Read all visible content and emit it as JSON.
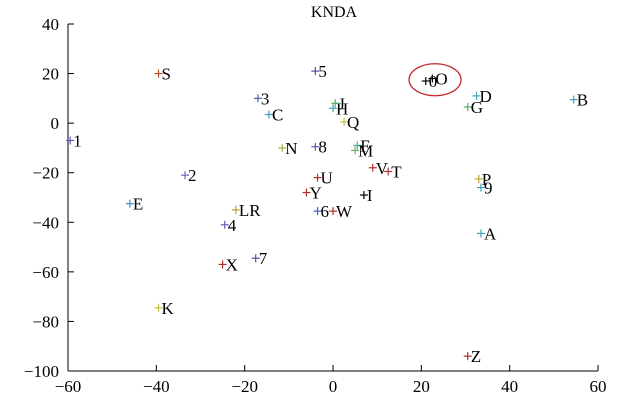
{
  "chart_data": {
    "type": "scatter",
    "title": "KNDA",
    "xlabel": "",
    "ylabel": "",
    "xlim": [
      -60,
      60
    ],
    "ylim": [
      -100,
      40
    ],
    "xticks": [
      -60,
      -40,
      -20,
      0,
      20,
      40,
      60
    ],
    "yticks": [
      -100,
      -80,
      -60,
      -40,
      -20,
      0,
      20,
      40
    ],
    "grid": false,
    "points": [
      {
        "label": "1",
        "x": -59.5,
        "y": -7,
        "color": "#5a5aa8"
      },
      {
        "label": "S",
        "x": -39.5,
        "y": 20,
        "color": "#b0502a"
      },
      {
        "label": "2",
        "x": -33.5,
        "y": -21,
        "color": "#6a6ac0"
      },
      {
        "label": "E",
        "x": -46,
        "y": -32.5,
        "color": "#3a8acb"
      },
      {
        "label": "3",
        "x": -17,
        "y": 10,
        "color": "#5060b0"
      },
      {
        "label": "C",
        "x": -14.5,
        "y": 3.5,
        "color": "#3a9acb"
      },
      {
        "label": "N",
        "x": -11.5,
        "y": -10,
        "color": "#a8b040"
      },
      {
        "label": "8",
        "x": -4,
        "y": -9.5,
        "color": "#5a5ab0"
      },
      {
        "label": "LR",
        "x": -22,
        "y": -35,
        "color": "#b8a030"
      },
      {
        "label": "4",
        "x": -24.5,
        "y": -41,
        "color": "#6060b8"
      },
      {
        "label": "7",
        "x": -17.5,
        "y": -54.5,
        "color": "#5050a8"
      },
      {
        "label": "X",
        "x": -25,
        "y": -57,
        "color": "#b03030"
      },
      {
        "label": "K",
        "x": -39.5,
        "y": -74.5,
        "color": "#c0c040"
      },
      {
        "label": "5",
        "x": -4,
        "y": 21,
        "color": "#5050a8"
      },
      {
        "label": "H",
        "x": 0,
        "y": 6,
        "color": "#40a0c0"
      },
      {
        "label": "J",
        "x": 0.5,
        "y": 8,
        "color": "#50b060"
      },
      {
        "label": "Q",
        "x": 2.5,
        "y": 0.5,
        "color": "#c0c040"
      },
      {
        "label": "F",
        "x": 5.5,
        "y": -9,
        "color": "#40b0a0"
      },
      {
        "label": "M",
        "x": 5,
        "y": -11,
        "color": "#70b060"
      },
      {
        "label": "V",
        "x": 9,
        "y": -18,
        "color": "#b03030"
      },
      {
        "label": "T",
        "x": 12.5,
        "y": -19.5,
        "color": "#b03030"
      },
      {
        "label": "U",
        "x": -3.5,
        "y": -22,
        "color": "#b03030"
      },
      {
        "label": "Y",
        "x": -6,
        "y": -28,
        "color": "#b03030"
      },
      {
        "label": "I",
        "x": 7,
        "y": -29,
        "color": "#000000"
      },
      {
        "label": "6",
        "x": -3.5,
        "y": -35.5,
        "color": "#4060c0"
      },
      {
        "label": "W",
        "x": 0,
        "y": -35.5,
        "color": "#b03030"
      },
      {
        "label": "0",
        "x": 21,
        "y": 17,
        "color": "#000000"
      },
      {
        "label": "O",
        "x": 22.5,
        "y": 18,
        "color": "#000000"
      },
      {
        "label": "D",
        "x": 32.5,
        "y": 11,
        "color": "#40a0c0"
      },
      {
        "label": "G",
        "x": 30.5,
        "y": 6.5,
        "color": "#50b060"
      },
      {
        "label": "B",
        "x": 54.5,
        "y": 9.5,
        "color": "#40a0c0"
      },
      {
        "label": "P",
        "x": 33,
        "y": -22.5,
        "color": "#c0a030"
      },
      {
        "label": "9",
        "x": 33.5,
        "y": -26,
        "color": "#40a0c0"
      },
      {
        "label": "A",
        "x": 33.5,
        "y": -44.5,
        "color": "#40a0c0"
      },
      {
        "label": "Z",
        "x": 30.5,
        "y": -94,
        "color": "#b03030"
      }
    ],
    "annotations": [
      {
        "type": "ellipse",
        "around": [
          "0",
          "O"
        ],
        "color": "#c0282a"
      }
    ]
  }
}
